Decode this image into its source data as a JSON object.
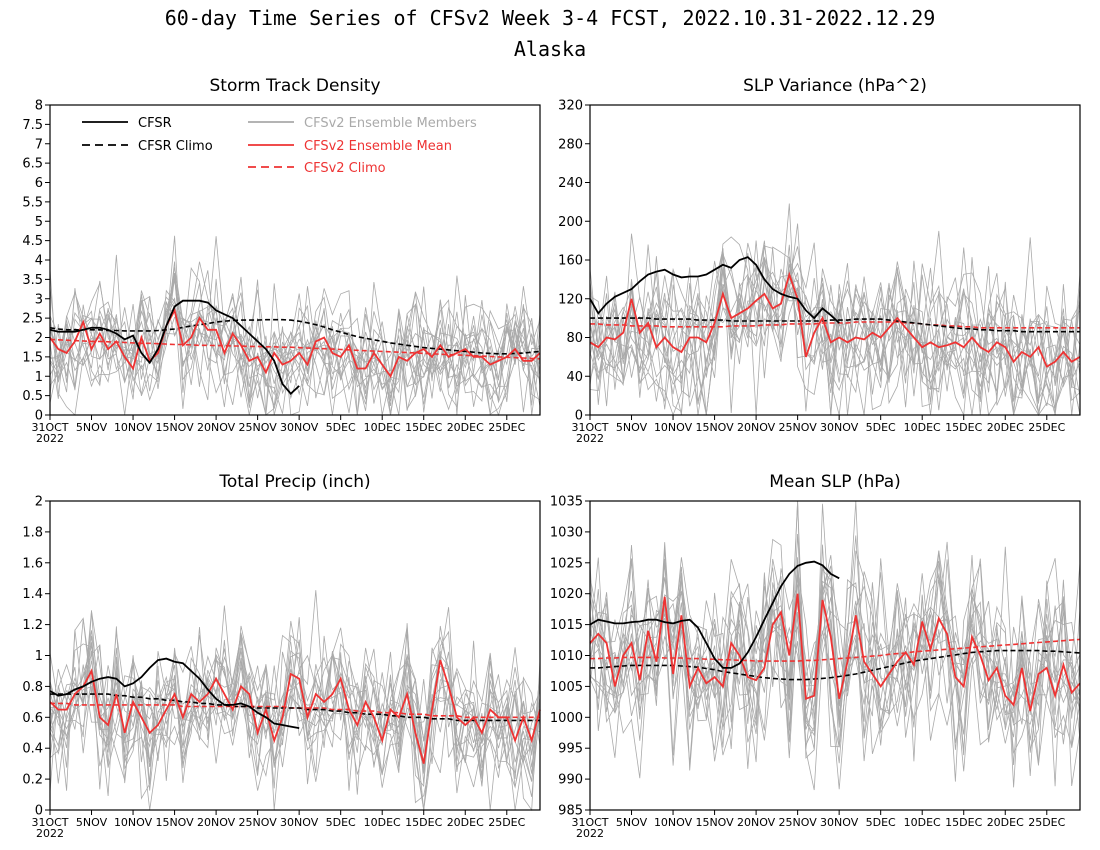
{
  "figure": {
    "title_line1": "60-day Time Series of CFSv2 Week 3-4 FCST, 2022.10.31-2022.12.29",
    "title_line2": "Alaska"
  },
  "colors": {
    "cfsr": "#000000",
    "cfsv2": "#ee3333",
    "members": "#aaaaaa"
  },
  "x_axis": {
    "n_days": 60,
    "tick_labels": [
      "31OCT",
      "5NOV",
      "10NOV",
      "15NOV",
      "20NOV",
      "25NOV",
      "30NOV",
      "5DEC",
      "10DEC",
      "15DEC",
      "20DEC",
      "25DEC"
    ],
    "year_label": "2022"
  },
  "legend": {
    "cfsr": "CFSR",
    "cfsr_climo": "CFSR Climo",
    "members": "CFSv2 Ensemble Members",
    "ens_mean": "CFSv2 Ensemble Mean",
    "cfsv2_climo": "CFSv2 Climo"
  },
  "chart_data": [
    {
      "type": "line",
      "title": "Storm Track Density",
      "ylim": [
        0,
        8
      ],
      "yticks": [
        "0",
        "0.5",
        "1",
        "1.5",
        "2",
        "2.5",
        "3",
        "3.5",
        "4",
        "4.5",
        "5",
        "5.5",
        "6",
        "6.5",
        "7",
        "7.5",
        "8"
      ],
      "legend_position": "top-left",
      "series": [
        {
          "name": "CFSR",
          "style": "solid-black",
          "values": [
            2.2,
            2.15,
            2.15,
            2.15,
            2.2,
            2.25,
            2.25,
            2.2,
            2.1,
            1.95,
            2.05,
            1.6,
            1.35,
            1.7,
            2.3,
            2.8,
            2.95,
            2.95,
            2.95,
            2.9,
            2.7,
            2.6,
            2.5,
            2.3,
            2.1,
            1.9,
            1.7,
            1.4,
            0.8,
            0.55,
            0.75
          ]
        },
        {
          "name": "CFSR Climo",
          "style": "dashed-black",
          "values": [
            2.25,
            2.22,
            2.2,
            2.2,
            2.2,
            2.2,
            2.2,
            2.18,
            2.18,
            2.17,
            2.17,
            2.17,
            2.17,
            2.18,
            2.2,
            2.22,
            2.26,
            2.3,
            2.33,
            2.36,
            2.4,
            2.42,
            2.44,
            2.45,
            2.45,
            2.45,
            2.46,
            2.46,
            2.46,
            2.45,
            2.42,
            2.38,
            2.33,
            2.27,
            2.2,
            2.14,
            2.08,
            2.02,
            1.98,
            1.94,
            1.9,
            1.86,
            1.83,
            1.8,
            1.77,
            1.74,
            1.72,
            1.7,
            1.68,
            1.66,
            1.64,
            1.62,
            1.6,
            1.59,
            1.58,
            1.58,
            1.59,
            1.6,
            1.62,
            1.64
          ]
        },
        {
          "name": "CFSv2 Ensemble Mean",
          "style": "solid-red",
          "values": [
            2.0,
            1.7,
            1.6,
            1.9,
            2.4,
            1.7,
            2.1,
            1.7,
            1.9,
            1.5,
            1.2,
            2.0,
            1.4,
            1.6,
            2.3,
            2.7,
            1.8,
            2.0,
            2.5,
            2.2,
            2.2,
            1.6,
            2.1,
            1.8,
            1.4,
            1.5,
            1.1,
            1.6,
            1.3,
            1.4,
            1.6,
            1.3,
            1.9,
            2.0,
            1.6,
            1.5,
            1.8,
            1.2,
            1.2,
            1.6,
            1.3,
            1.0,
            1.5,
            1.4,
            1.6,
            1.7,
            1.5,
            1.8,
            1.5,
            1.6,
            1.7,
            1.5,
            1.5,
            1.3,
            1.4,
            1.5,
            1.7,
            1.4,
            1.4,
            1.6
          ]
        },
        {
          "name": "CFSv2 Climo",
          "style": "dashed-red",
          "values": [
            1.95,
            1.94,
            1.93,
            1.92,
            1.91,
            1.9,
            1.9,
            1.89,
            1.88,
            1.87,
            1.86,
            1.85,
            1.85,
            1.84,
            1.83,
            1.82,
            1.82,
            1.81,
            1.8,
            1.8,
            1.79,
            1.79,
            1.78,
            1.78,
            1.77,
            1.77,
            1.76,
            1.76,
            1.75,
            1.75,
            1.74,
            1.73,
            1.72,
            1.71,
            1.7,
            1.69,
            1.68,
            1.67,
            1.66,
            1.65,
            1.64,
            1.63,
            1.62,
            1.61,
            1.6,
            1.59,
            1.58,
            1.57,
            1.56,
            1.55,
            1.54,
            1.53,
            1.52,
            1.51,
            1.5,
            1.49,
            1.48,
            1.47,
            1.46,
            1.45
          ]
        }
      ]
    },
    {
      "type": "line",
      "title": "SLP Variance (hPa^2)",
      "ylim": [
        0,
        320
      ],
      "yticks": [
        "0",
        "40",
        "80",
        "120",
        "160",
        "200",
        "240",
        "280",
        "320"
      ],
      "series": [
        {
          "name": "CFSR",
          "style": "solid-black",
          "values": [
            120,
            105,
            115,
            122,
            126,
            130,
            138,
            145,
            148,
            150,
            145,
            142,
            143,
            143,
            145,
            150,
            155,
            152,
            160,
            163,
            155,
            140,
            130,
            125,
            122,
            120,
            108,
            100,
            110,
            103,
            95
          ]
        },
        {
          "name": "CFSR Climo",
          "style": "dashed-black",
          "values": [
            100,
            100,
            100,
            100,
            100,
            100,
            100,
            100,
            99,
            99,
            99,
            99,
            99,
            98,
            98,
            98,
            98,
            97,
            97,
            97,
            97,
            97,
            97,
            97,
            97,
            97,
            97,
            97,
            97,
            98,
            98,
            98,
            99,
            99,
            99,
            99,
            98,
            97,
            96,
            95,
            94,
            93,
            92,
            91,
            90,
            89,
            89,
            88,
            88,
            87,
            87,
            87,
            86,
            86,
            86,
            86,
            86,
            86,
            86,
            86
          ]
        },
        {
          "name": "CFSv2 Ensemble Mean",
          "style": "solid-red",
          "values": [
            75,
            70,
            80,
            78,
            85,
            120,
            85,
            95,
            70,
            80,
            70,
            65,
            80,
            80,
            75,
            95,
            125,
            100,
            105,
            110,
            118,
            125,
            110,
            115,
            145,
            120,
            60,
            85,
            100,
            75,
            80,
            75,
            80,
            78,
            85,
            80,
            90,
            100,
            90,
            80,
            70,
            75,
            70,
            72,
            75,
            70,
            80,
            70,
            65,
            75,
            70,
            55,
            65,
            60,
            70,
            50,
            55,
            65,
            55,
            60
          ]
        },
        {
          "name": "CFSv2 Climo",
          "style": "dashed-red",
          "values": [
            94,
            94,
            93,
            93,
            93,
            92,
            92,
            92,
            92,
            91,
            91,
            91,
            91,
            91,
            91,
            91,
            91,
            92,
            92,
            92,
            92,
            93,
            93,
            93,
            94,
            94,
            94,
            94,
            95,
            95,
            95,
            95,
            96,
            96,
            96,
            96,
            96,
            96,
            95,
            95,
            94,
            93,
            93,
            92,
            92,
            91,
            91,
            90,
            90,
            90,
            90,
            90,
            90,
            90,
            90,
            90,
            90,
            90,
            90,
            90
          ]
        }
      ]
    },
    {
      "type": "line",
      "title": "Total Precip (inch)",
      "ylim": [
        0,
        2
      ],
      "yticks": [
        "0",
        "0.2",
        "0.4",
        "0.6",
        "0.8",
        "1",
        "1.2",
        "1.4",
        "1.6",
        "1.8",
        "2"
      ],
      "series": [
        {
          "name": "CFSR",
          "style": "solid-black",
          "values": [
            0.77,
            0.74,
            0.75,
            0.78,
            0.8,
            0.83,
            0.85,
            0.86,
            0.85,
            0.8,
            0.82,
            0.86,
            0.92,
            0.97,
            0.98,
            0.96,
            0.95,
            0.9,
            0.85,
            0.78,
            0.72,
            0.68,
            0.68,
            0.69,
            0.67,
            0.63,
            0.6,
            0.56,
            0.55,
            0.54,
            0.53
          ]
        },
        {
          "name": "CFSR Climo",
          "style": "dashed-black",
          "values": [
            0.75,
            0.75,
            0.75,
            0.75,
            0.75,
            0.75,
            0.75,
            0.75,
            0.74,
            0.74,
            0.73,
            0.73,
            0.72,
            0.72,
            0.71,
            0.71,
            0.7,
            0.7,
            0.69,
            0.69,
            0.68,
            0.68,
            0.67,
            0.67,
            0.67,
            0.66,
            0.66,
            0.66,
            0.66,
            0.66,
            0.66,
            0.65,
            0.65,
            0.65,
            0.64,
            0.64,
            0.63,
            0.63,
            0.62,
            0.62,
            0.62,
            0.61,
            0.61,
            0.6,
            0.6,
            0.6,
            0.59,
            0.59,
            0.59,
            0.58,
            0.58,
            0.58,
            0.58,
            0.58,
            0.58,
            0.58,
            0.58,
            0.58,
            0.58,
            0.58
          ]
        },
        {
          "name": "CFSv2 Ensemble Mean",
          "style": "solid-red",
          "values": [
            0.7,
            0.65,
            0.65,
            0.75,
            0.8,
            0.9,
            0.6,
            0.55,
            0.75,
            0.5,
            0.7,
            0.6,
            0.5,
            0.55,
            0.65,
            0.75,
            0.6,
            0.75,
            0.7,
            0.75,
            0.85,
            0.75,
            0.65,
            0.8,
            0.75,
            0.5,
            0.65,
            0.45,
            0.6,
            0.88,
            0.85,
            0.6,
            0.75,
            0.7,
            0.75,
            0.85,
            0.65,
            0.55,
            0.7,
            0.6,
            0.45,
            0.65,
            0.6,
            0.75,
            0.5,
            0.3,
            0.65,
            0.97,
            0.8,
            0.6,
            0.55,
            0.6,
            0.5,
            0.65,
            0.6,
            0.6,
            0.45,
            0.6,
            0.45,
            0.65
          ]
        },
        {
          "name": "CFSv2 Climo",
          "style": "dashed-red",
          "values": [
            0.69,
            0.69,
            0.69,
            0.68,
            0.68,
            0.68,
            0.68,
            0.68,
            0.68,
            0.68,
            0.68,
            0.68,
            0.68,
            0.68,
            0.68,
            0.68,
            0.67,
            0.67,
            0.67,
            0.67,
            0.67,
            0.67,
            0.67,
            0.67,
            0.67,
            0.67,
            0.67,
            0.67,
            0.67,
            0.66,
            0.66,
            0.66,
            0.66,
            0.66,
            0.65,
            0.65,
            0.65,
            0.64,
            0.64,
            0.64,
            0.63,
            0.63,
            0.63,
            0.62,
            0.62,
            0.62,
            0.61,
            0.61,
            0.61,
            0.61,
            0.6,
            0.6,
            0.6,
            0.6,
            0.6,
            0.6,
            0.6,
            0.6,
            0.6,
            0.6
          ]
        }
      ]
    },
    {
      "type": "line",
      "title": "Mean SLP (hPa)",
      "ylim": [
        985,
        1035
      ],
      "yticks": [
        "985",
        "990",
        "995",
        "1000",
        "1005",
        "1010",
        "1015",
        "1020",
        "1025",
        "1030",
        "1035"
      ],
      "series": [
        {
          "name": "CFSR",
          "style": "solid-black",
          "values": [
            1015,
            1015.8,
            1015.5,
            1015.2,
            1015.2,
            1015.4,
            1015.5,
            1015.8,
            1015.8,
            1015.4,
            1015.2,
            1015.6,
            1015.8,
            1014.5,
            1012,
            1009.5,
            1008,
            1008,
            1008.7,
            1010.5,
            1013,
            1015.8,
            1018.5,
            1021.2,
            1023.2,
            1024.5,
            1025,
            1025.2,
            1024.6,
            1023.2,
            1022.5
          ]
        },
        {
          "name": "CFSR Climo",
          "style": "dashed-black",
          "values": [
            1008,
            1008,
            1008.1,
            1008.2,
            1008.3,
            1008.4,
            1008.4,
            1008.4,
            1008.4,
            1008.4,
            1008.4,
            1008.3,
            1008.2,
            1008.1,
            1007.9,
            1007.7,
            1007.4,
            1007.2,
            1007,
            1006.8,
            1006.6,
            1006.4,
            1006.3,
            1006.2,
            1006.1,
            1006.1,
            1006.1,
            1006.2,
            1006.3,
            1006.4,
            1006.6,
            1006.8,
            1007,
            1007.3,
            1007.6,
            1007.9,
            1008.2,
            1008.5,
            1008.8,
            1009.1,
            1009.3,
            1009.5,
            1009.7,
            1009.9,
            1010.1,
            1010.3,
            1010.5,
            1010.6,
            1010.7,
            1010.8,
            1010.8,
            1010.8,
            1010.8,
            1010.8,
            1010.8,
            1010.7,
            1010.7,
            1010.6,
            1010.5,
            1010.4
          ]
        },
        {
          "name": "CFSv2 Ensemble Mean",
          "style": "solid-red",
          "values": [
            1012,
            1013.5,
            1012,
            1005,
            1010,
            1012,
            1006,
            1014,
            1009,
            1019.5,
            1007,
            1016.5,
            1005,
            1008,
            1005.5,
            1006.5,
            1005,
            1012,
            1010,
            1006.5,
            1006,
            1008,
            1015,
            1017,
            1010,
            1020,
            1003,
            1003.5,
            1019,
            1013,
            1003,
            1009,
            1016.5,
            1009,
            1007,
            1005,
            1007,
            1009,
            1010.5,
            1008.5,
            1015.5,
            1011,
            1016,
            1013.5,
            1006.5,
            1005,
            1013,
            1010,
            1006,
            1008,
            1003.5,
            1002,
            1008,
            1001,
            1007,
            1008,
            1003.5,
            1008.5,
            1004,
            1005.5
          ]
        },
        {
          "name": "CFSv2 Climo",
          "style": "dashed-red",
          "values": [
            1009.5,
            1009.5,
            1009.6,
            1009.6,
            1009.7,
            1009.7,
            1009.7,
            1009.7,
            1009.7,
            1009.6,
            1009.6,
            1009.6,
            1009.5,
            1009.5,
            1009.4,
            1009.4,
            1009.3,
            1009.3,
            1009.2,
            1009.2,
            1009.1,
            1009.1,
            1009.1,
            1009.1,
            1009.1,
            1009.1,
            1009.2,
            1009.2,
            1009.3,
            1009.4,
            1009.5,
            1009.6,
            1009.7,
            1009.8,
            1009.9,
            1010,
            1010.2,
            1010.3,
            1010.4,
            1010.6,
            1010.7,
            1010.8,
            1010.9,
            1011,
            1011.1,
            1011.2,
            1011.3,
            1011.4,
            1011.5,
            1011.6,
            1011.7,
            1011.8,
            1011.9,
            1012,
            1012.1,
            1012.2,
            1012.3,
            1012.4,
            1012.5,
            1012.6
          ]
        }
      ]
    }
  ]
}
